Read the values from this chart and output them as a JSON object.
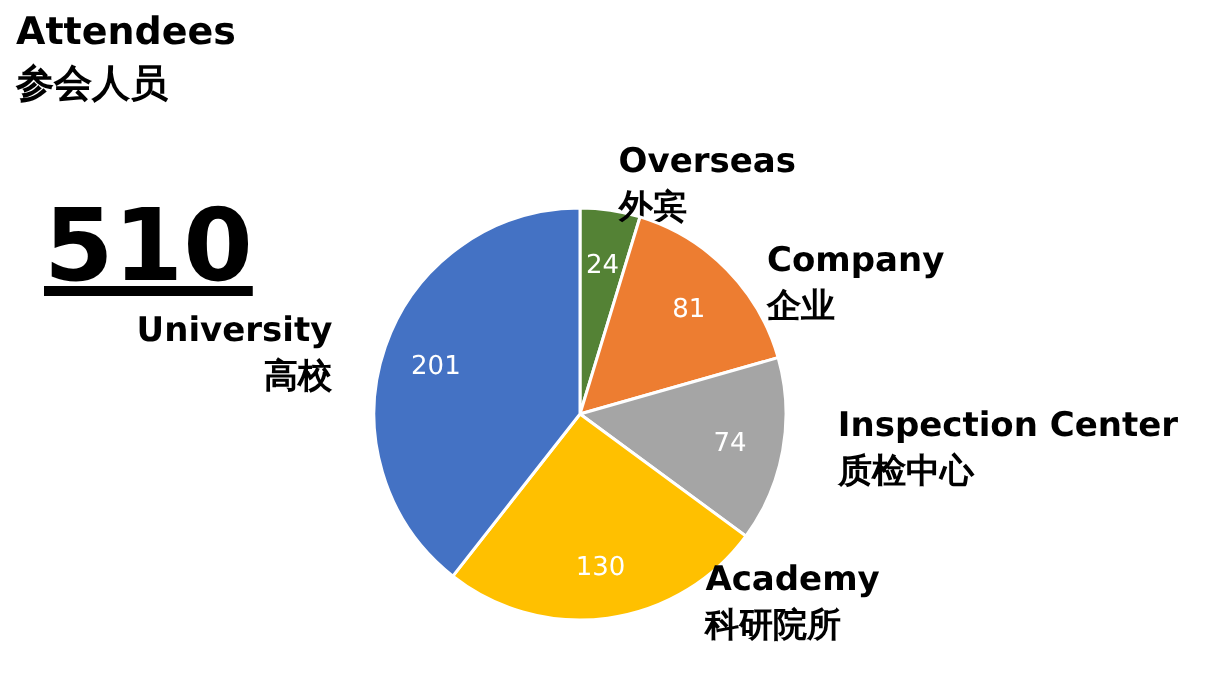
{
  "chart_data": {
    "type": "pie",
    "title": "Attendees\n参会人员",
    "categories": [
      "Overseas\n外宾",
      "Company\n企业",
      "Inspection Center\n质检中心",
      "Academy\n科研院所",
      "University\n高校"
    ],
    "values": [
      24,
      81,
      74,
      130,
      201
    ],
    "colors": [
      "#548235",
      "#ed7d31",
      "#a5a5a5",
      "#ffc000",
      "#4472c4"
    ],
    "data_labels": true,
    "annotations": [
      "510"
    ]
  }
}
